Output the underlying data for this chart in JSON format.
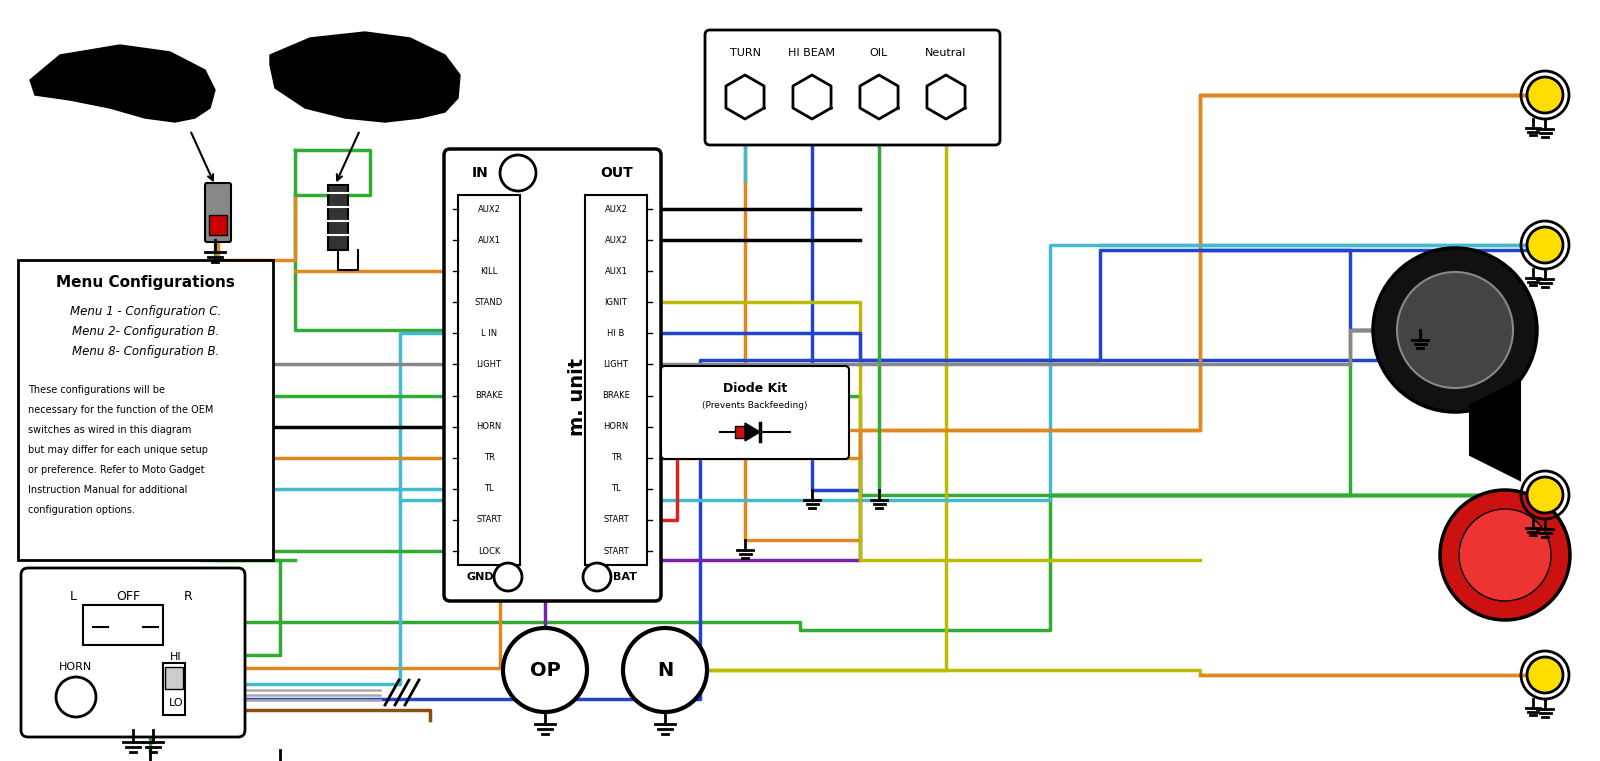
{
  "bg_color": "#ffffff",
  "wire_colors": {
    "green": "#33aa33",
    "blue": "#2244cc",
    "orange": "#e08820",
    "yellow": "#bbbb00",
    "cyan": "#44bbcc",
    "purple": "#7722aa",
    "gray": "#888888",
    "black": "#111111",
    "brown": "#8B5010",
    "red": "#dd2222",
    "lime": "#88cc00",
    "white": "#ffffff"
  },
  "menu_text_title": "Menu Configurations",
  "menu_text_items": [
    "Menu 1 - Configuration C.",
    "Menu 2- Configuration B.",
    "Menu 8- Configuration B."
  ],
  "menu_text_body": [
    "These configurations will be",
    "necessary for the function of the OEM",
    "switches as wired in this diagram",
    "but may differ for each unique setup",
    "or preference. Refer to Moto Gadget",
    "Instruction Manual for additional",
    "configuration options."
  ],
  "indicator_labels": [
    "TURN",
    "HI BEAM",
    "OIL",
    "Neutral"
  ],
  "m_unit_in_labels": [
    "AUX2",
    "AUX1",
    "KILL",
    "STAND",
    "L IN",
    "LIGHT",
    "BRAKE",
    "HORN",
    "TR",
    "TL",
    "START",
    "LOCK"
  ],
  "m_unit_out_labels": [
    "AUX2",
    "AUX2",
    "AUX1",
    "IGNIT",
    "HI B",
    "LIGHT",
    "BRAKE",
    "HORN",
    "TR",
    "TL",
    "START",
    "START"
  ],
  "diode_text": [
    "Diode Kit",
    "(Prevents Backfeeding)"
  ]
}
